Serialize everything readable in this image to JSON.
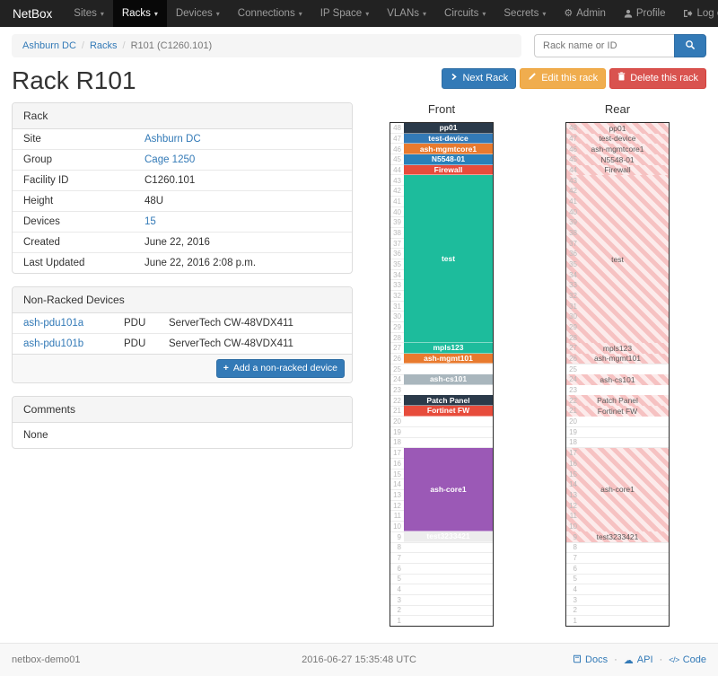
{
  "navbar": {
    "brand": "NetBox",
    "items": [
      {
        "label": "Sites"
      },
      {
        "label": "Racks",
        "active": true
      },
      {
        "label": "Devices"
      },
      {
        "label": "Connections"
      },
      {
        "label": "IP Space"
      },
      {
        "label": "VLANs"
      },
      {
        "label": "Circuits"
      },
      {
        "label": "Secrets"
      }
    ],
    "right": [
      {
        "label": "Admin",
        "icon": "gear-icon"
      },
      {
        "label": "Profile",
        "icon": "user-icon"
      },
      {
        "label": "Log out",
        "icon": "logout-icon"
      }
    ]
  },
  "breadcrumb": {
    "items": [
      {
        "label": "Ashburn DC",
        "link": true
      },
      {
        "label": "Racks",
        "link": true
      },
      {
        "label": "R101 (C1260.101)",
        "link": false
      }
    ]
  },
  "search": {
    "placeholder": "Rack name or ID"
  },
  "page_title": "Rack R101",
  "actions": [
    {
      "label": "Next Rack",
      "style": "primary",
      "icon": "chevron-right-icon"
    },
    {
      "label": "Edit this rack",
      "style": "warning",
      "icon": "pencil-icon"
    },
    {
      "label": "Delete this rack",
      "style": "danger",
      "icon": "trash-icon"
    }
  ],
  "rack_panel": {
    "title": "Rack",
    "rows": [
      {
        "label": "Site",
        "value": "Ashburn DC",
        "link": true
      },
      {
        "label": "Group",
        "value": "Cage 1250",
        "link": true
      },
      {
        "label": "Facility ID",
        "value": "C1260.101"
      },
      {
        "label": "Height",
        "value": "48U"
      },
      {
        "label": "Devices",
        "value": "15",
        "link": true
      },
      {
        "label": "Created",
        "value": "June 22, 2016"
      },
      {
        "label": "Last Updated",
        "value": "June 22, 2016 2:08 p.m."
      }
    ]
  },
  "nonracked_panel": {
    "title": "Non-Racked Devices",
    "rows": [
      {
        "name": "ash-pdu101a",
        "role": "PDU",
        "type": "ServerTech CW-48VDX411"
      },
      {
        "name": "ash-pdu101b",
        "role": "PDU",
        "type": "ServerTech CW-48VDX411"
      }
    ],
    "add_button": "Add a non-racked device"
  },
  "comments_panel": {
    "title": "Comments",
    "body": "None"
  },
  "elevation": {
    "front_label": "Front",
    "rear_label": "Rear",
    "units": 48,
    "rear_hatch": [
      "#f6c2c2",
      "#fcebeb"
    ],
    "devices": [
      {
        "name": "pp01",
        "u": 48,
        "h": 1,
        "color": "#2b3a4a",
        "text": "#ffffff"
      },
      {
        "name": "test-device",
        "u": 47,
        "h": 1,
        "color": "#337ab7",
        "text": "#ffffff"
      },
      {
        "name": "ash-mgmtcore1",
        "u": 46,
        "h": 1,
        "color": "#e87a2e",
        "text": "#ffffff"
      },
      {
        "name": "N5548-01",
        "u": 45,
        "h": 1,
        "color": "#2980b9",
        "text": "#ffffff"
      },
      {
        "name": "Firewall",
        "u": 44,
        "h": 1,
        "color": "#e74c3c",
        "text": "#ffffff"
      },
      {
        "name": "test",
        "u": 43,
        "h": 16,
        "color": "#1dbc9c",
        "text": "#ffffff"
      },
      {
        "name": "mpls123",
        "u": 27,
        "h": 1,
        "color": "#1dbc9c",
        "text": "#ffffff"
      },
      {
        "name": "ash-mgmt101",
        "u": 26,
        "h": 1,
        "color": "#e87a2e",
        "text": "#ffffff"
      },
      {
        "name": "ash-cs101",
        "u": 24,
        "h": 1,
        "color": "#a9b6bd",
        "text": "#ffffff"
      },
      {
        "name": "Patch Panel",
        "u": 22,
        "h": 1,
        "color": "#2b3a4a",
        "text": "#ffffff"
      },
      {
        "name": "Fortinet FW",
        "u": 21,
        "h": 1,
        "color": "#e74c3c",
        "text": "#ffffff"
      },
      {
        "name": "ash-core1",
        "u": 17,
        "h": 8,
        "color": "#9b59b6",
        "text": "#ffffff"
      },
      {
        "name": "test3233421",
        "u": 9,
        "h": 1,
        "color": "#ededed",
        "text": "#ffffff"
      }
    ]
  },
  "footer": {
    "hostname": "netbox-demo01",
    "timestamp": "2016-06-27 15:35:48 UTC",
    "links": [
      {
        "label": "Docs",
        "icon": "book-icon"
      },
      {
        "label": "API",
        "icon": "cloud-icon"
      },
      {
        "label": "Code",
        "icon": "code-icon"
      }
    ]
  },
  "colors": {
    "primary": "#337ab7",
    "warning": "#f0ad4e",
    "danger": "#d9534f",
    "link": "#337ab7",
    "navbar_bg": "#222222"
  }
}
